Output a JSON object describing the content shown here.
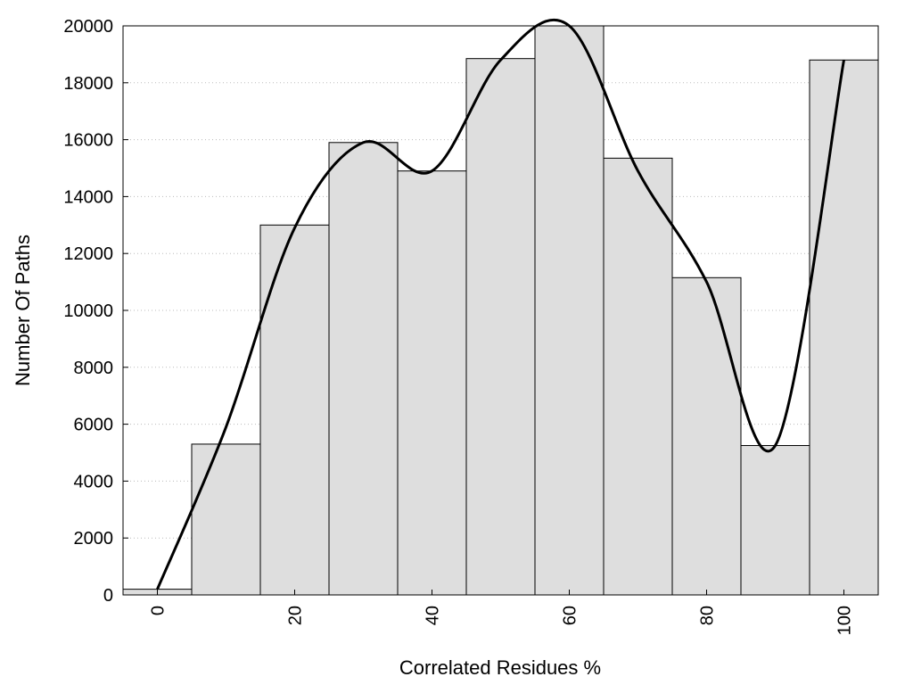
{
  "chart_data": {
    "type": "bar",
    "title": "",
    "xlabel": "Correlated Residues %",
    "ylabel": "Number Of Paths",
    "x": [
      0,
      10,
      20,
      30,
      40,
      50,
      60,
      70,
      80,
      90,
      100
    ],
    "values": [
      200,
      5300,
      13000,
      15900,
      14900,
      18850,
      20000,
      15350,
      11150,
      5250,
      18800
    ],
    "bin_width": 10,
    "xlim": [
      -10,
      100
    ],
    "ylim": [
      0,
      20000
    ],
    "xticks": [
      "0",
      "20",
      "40",
      "60",
      "80",
      "100"
    ],
    "xtick_values": [
      0,
      20,
      40,
      60,
      80,
      100
    ],
    "yticks": [
      "0",
      "2000",
      "4000",
      "6000",
      "8000",
      "10000",
      "12000",
      "14000",
      "16000",
      "18000",
      "20000"
    ],
    "ytick_values": [
      0,
      2000,
      4000,
      6000,
      8000,
      10000,
      12000,
      14000,
      16000,
      18000,
      20000
    ],
    "grid": "horizontal-dotted",
    "legend": "none",
    "colors": {
      "bar_fill": "#dedede",
      "bar_stroke": "#000000",
      "curve": "#000000",
      "grid": "#bbbbbb"
    },
    "trend_curve": {
      "x": [
        0,
        10,
        20,
        30,
        40,
        50,
        60,
        70,
        80,
        90,
        100
      ],
      "y": [
        200,
        5900,
        12900,
        15900,
        14900,
        18800,
        20000,
        14900,
        11000,
        5250,
        18800
      ]
    }
  }
}
